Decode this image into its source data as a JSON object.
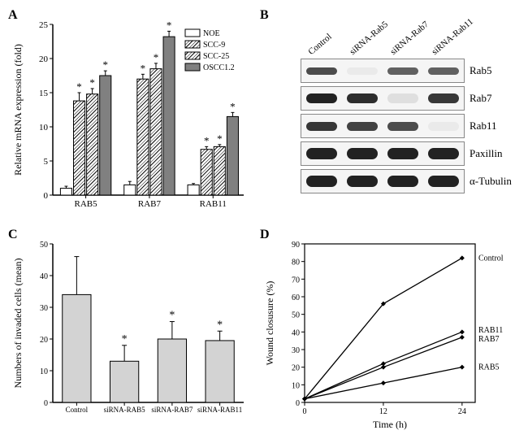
{
  "panelA": {
    "label": "A",
    "type": "bar",
    "ylabel": "Relative mRNA expression (fold)",
    "y_ticks": [
      0,
      5,
      10,
      15,
      20,
      25
    ],
    "ylim": [
      0,
      25
    ],
    "groups": [
      "RAB5",
      "RAB7",
      "RAB11"
    ],
    "series": [
      "NOE",
      "SCC-9",
      "SCC-25",
      "OSCC1.2"
    ],
    "fills": [
      "white",
      "crosshatch",
      "crosshatch",
      "solidgray"
    ],
    "legend_colors": [
      "#ffffff",
      "#d0d0d0",
      "#d0d0d0",
      "#808080"
    ],
    "values": {
      "RAB5": {
        "NOE": 1.0,
        "SCC-9": 13.8,
        "SCC-25": 14.8,
        "OSCC1.2": 17.5
      },
      "RAB7": {
        "NOE": 1.5,
        "SCC-9": 17.0,
        "SCC-25": 18.5,
        "OSCC1.2": 23.2
      },
      "RAB11": {
        "NOE": 1.5,
        "SCC-9": 6.7,
        "SCC-25": 7.1,
        "OSCC1.2": 11.5
      }
    },
    "errors": {
      "RAB5": {
        "NOE": 0.3,
        "SCC-9": 1.2,
        "SCC-25": 0.8,
        "OSCC1.2": 0.7
      },
      "RAB7": {
        "NOE": 0.5,
        "SCC-9": 0.7,
        "SCC-25": 0.8,
        "OSCC1.2": 0.8
      },
      "RAB11": {
        "NOE": 0.2,
        "SCC-9": 0.4,
        "SCC-25": 0.3,
        "OSCC1.2": 0.6
      }
    },
    "sig_marker": "*",
    "axis_color": "#000000",
    "tick_fontsize": 11,
    "label_fontsize": 12
  },
  "panelB": {
    "label": "B",
    "type": "western-blot",
    "lanes": [
      "Control",
      "siRNA-Rab5",
      "siRNA-Rab7",
      "siRNA-Rab11"
    ],
    "rows": [
      {
        "name": "Rab5",
        "intensity": [
          0.8,
          0.02,
          0.7,
          0.7
        ],
        "height": 9
      },
      {
        "name": "Rab7",
        "intensity": [
          1.0,
          0.95,
          0.1,
          0.9
        ],
        "height": 12
      },
      {
        "name": "Rab11",
        "intensity": [
          0.9,
          0.85,
          0.8,
          0.05
        ],
        "height": 11
      },
      {
        "name": "Paxillin",
        "intensity": [
          1.0,
          1.0,
          1.0,
          1.0
        ],
        "height": 14
      },
      {
        "name": "α-Tubulin",
        "intensity": [
          1.0,
          1.0,
          1.0,
          1.0
        ],
        "height": 14
      }
    ],
    "band_color": "#1a1a1a",
    "strip_bg": "#f4f4f4"
  },
  "panelC": {
    "label": "C",
    "type": "bar",
    "ylabel": "Numbers of invaded cells (mean)",
    "y_ticks": [
      0,
      10,
      20,
      30,
      40,
      50
    ],
    "ylim": [
      0,
      50
    ],
    "categories": [
      "Control",
      "siRNA-RAB5",
      "siRNA-RAB7",
      "siRNA-RAB11"
    ],
    "values": [
      34,
      13,
      20,
      19.5
    ],
    "errors": [
      12,
      5,
      5.5,
      3
    ],
    "sig": [
      false,
      true,
      true,
      true
    ],
    "sig_marker": "*",
    "bar_fill": "#d3d3d3",
    "bar_stroke": "#000000",
    "axis_color": "#000000",
    "tick_fontsize": 10,
    "label_fontsize": 12
  },
  "panelD": {
    "label": "D",
    "type": "line",
    "xlabel": "Time (h)",
    "ylabel": "Wound closusure (%)",
    "x_ticks": [
      0,
      12,
      24
    ],
    "xlim": [
      0,
      26
    ],
    "y_ticks": [
      0,
      10,
      20,
      30,
      40,
      50,
      60,
      70,
      80,
      90
    ],
    "ylim": [
      0,
      90
    ],
    "series": [
      {
        "name": "Control",
        "points": [
          [
            0,
            2
          ],
          [
            12,
            56
          ],
          [
            24,
            82
          ]
        ],
        "label_y": 82
      },
      {
        "name": "RAB11",
        "points": [
          [
            0,
            2
          ],
          [
            12,
            22
          ],
          [
            24,
            40
          ]
        ],
        "label_y": 41
      },
      {
        "name": "RAB7",
        "points": [
          [
            0,
            2
          ],
          [
            12,
            20
          ],
          [
            24,
            37
          ]
        ],
        "label_y": 36
      },
      {
        "name": "RAB5",
        "points": [
          [
            0,
            2
          ],
          [
            12,
            11
          ],
          [
            24,
            20
          ]
        ],
        "label_y": 20
      }
    ],
    "line_color": "#000000",
    "marker": "diamond",
    "axis_color": "#000000",
    "tick_fontsize": 10,
    "label_fontsize": 12
  }
}
